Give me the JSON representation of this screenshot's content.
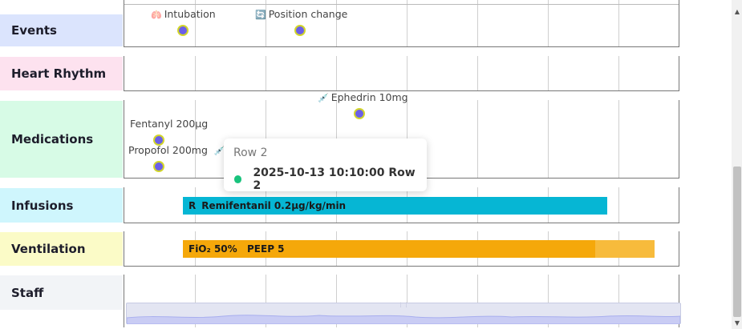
{
  "rows": {
    "events": "Events",
    "heart_rhythm": "Heart Rhythm",
    "medications": "Medications",
    "infusions": "Infusions",
    "ventilation": "Ventilation",
    "staff": "Staff"
  },
  "colors": {
    "events_bg": "#dbe4fd",
    "heart_bg": "#fde2ef",
    "medications_bg": "#d7fbe6",
    "infusions_bg": "#cff6fd",
    "ventilation_bg": "#fbfbc7",
    "staff_bg": "#f2f4f7",
    "marker_fill": "#6b5fe8",
    "marker_ring": "#d2d62a",
    "infusion_bar": "#06b6d4",
    "ventilation_bar": "#f5a80a",
    "ventilation_bar_fade": "#f7bb3c",
    "tooltip_dot": "#19c37d"
  },
  "events": [
    {
      "icon": "lungs-icon",
      "glyph": "🫁",
      "label": "Intubation"
    },
    {
      "icon": "reposition-icon",
      "glyph": "🔄",
      "label": "Position change"
    }
  ],
  "medications": [
    {
      "label": "Ephedrin 10mg",
      "icon": "syringe-icon",
      "glyph": "💉"
    },
    {
      "label": "Fentanyl 200μg"
    },
    {
      "label": "Propofol 200mg",
      "icon": "syringe-icon",
      "glyph": "💉"
    }
  ],
  "infusion": {
    "prefix": "R",
    "label": "Remifentanil 0.2μg/kg/min"
  },
  "ventilation": {
    "fio2": "FiO₂ 50%",
    "peep": "PEEP 5"
  },
  "tooltip": {
    "title": "Row 2",
    "value": "2025-10-13 10:10:00 Row 2"
  },
  "navigator": {
    "handle": "⋮⋮"
  }
}
